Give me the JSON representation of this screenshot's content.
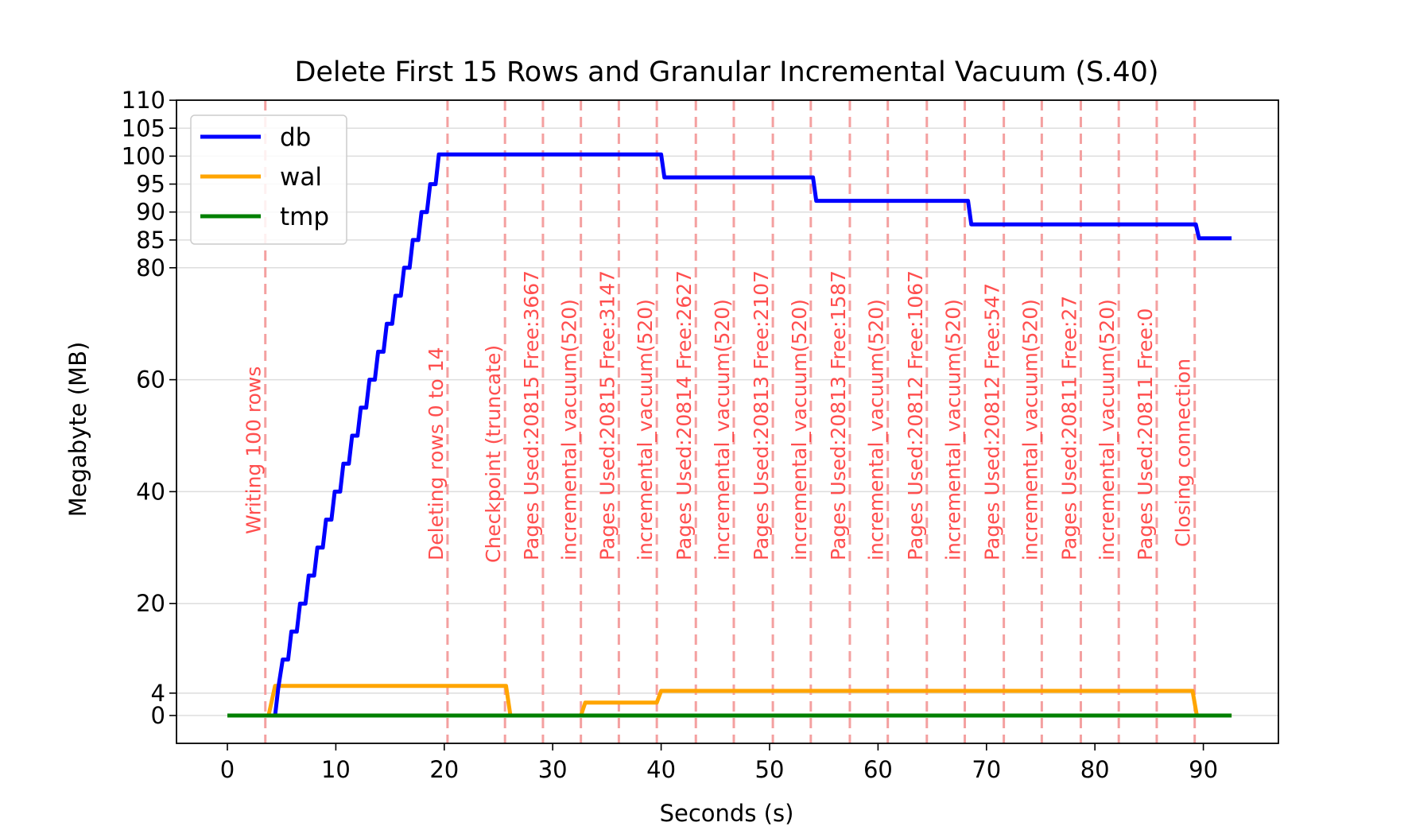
{
  "chart_data": {
    "type": "line",
    "title": "Delete First 15 Rows and Granular Incremental Vacuum (S.40)",
    "xlabel": "Seconds (s)",
    "ylabel": "Megabyte (MB)",
    "xlim": [
      -4.5,
      97.0
    ],
    "ylim": [
      -5,
      110
    ],
    "x_ticks": [
      0,
      10,
      20,
      30,
      40,
      50,
      60,
      70,
      80,
      90
    ],
    "y_ticks": [
      0,
      4,
      20,
      40,
      60,
      80,
      85,
      90,
      95,
      100,
      105,
      110
    ],
    "grid": "horizontal",
    "legend_position": "top-left",
    "series": [
      {
        "name": "db",
        "color": "#0000ff",
        "points": [
          [
            0,
            0
          ],
          [
            4.4,
            0
          ],
          [
            4.7,
            5
          ],
          [
            5.1,
            10
          ],
          [
            5.6,
            10
          ],
          [
            5.9,
            15
          ],
          [
            6.4,
            15
          ],
          [
            6.7,
            20
          ],
          [
            7.2,
            20
          ],
          [
            7.5,
            25
          ],
          [
            8.0,
            25
          ],
          [
            8.3,
            30
          ],
          [
            8.8,
            30
          ],
          [
            9.1,
            35
          ],
          [
            9.6,
            35
          ],
          [
            9.9,
            40
          ],
          [
            10.4,
            40
          ],
          [
            10.7,
            45
          ],
          [
            11.2,
            45
          ],
          [
            11.5,
            50
          ],
          [
            12.0,
            50
          ],
          [
            12.3,
            55
          ],
          [
            12.8,
            55
          ],
          [
            13.1,
            60
          ],
          [
            13.6,
            60
          ],
          [
            13.9,
            65
          ],
          [
            14.4,
            65
          ],
          [
            14.7,
            70
          ],
          [
            15.2,
            70
          ],
          [
            15.5,
            75
          ],
          [
            16.0,
            75
          ],
          [
            16.3,
            80
          ],
          [
            16.8,
            80
          ],
          [
            17.1,
            85
          ],
          [
            17.6,
            85
          ],
          [
            17.9,
            90
          ],
          [
            18.4,
            90
          ],
          [
            18.7,
            95
          ],
          [
            19.2,
            95
          ],
          [
            19.5,
            100.3
          ],
          [
            40.0,
            100.3
          ],
          [
            40.3,
            96.2
          ],
          [
            54.0,
            96.2
          ],
          [
            54.3,
            92.0
          ],
          [
            68.3,
            92.0
          ],
          [
            68.6,
            87.8
          ],
          [
            89.3,
            87.8
          ],
          [
            89.6,
            85.3
          ],
          [
            92.6,
            85.3
          ]
        ]
      },
      {
        "name": "wal",
        "color": "#ffa500",
        "points": [
          [
            0,
            0
          ],
          [
            3.8,
            0
          ],
          [
            4.4,
            5.3
          ],
          [
            25.7,
            5.3
          ],
          [
            26.1,
            0
          ],
          [
            32.6,
            0
          ],
          [
            33.0,
            2.3
          ],
          [
            39.6,
            2.3
          ],
          [
            40.0,
            4.4
          ],
          [
            89.0,
            4.4
          ],
          [
            89.4,
            0
          ],
          [
            92.6,
            0
          ]
        ]
      },
      {
        "name": "tmp",
        "color": "#008000",
        "points": [
          [
            0,
            0
          ],
          [
            92.6,
            0
          ]
        ]
      }
    ],
    "annotations": [
      {
        "x": 3.5,
        "label": "Writing 100 rows"
      },
      {
        "x": 20.3,
        "label": "Deleting rows 0 to 14"
      },
      {
        "x": 25.6,
        "label": "Checkpoint (truncate)"
      },
      {
        "x": 29.1,
        "label": "Pages Used:20815 Free:3667"
      },
      {
        "x": 32.6,
        "label": "incremental_vacuum(520)"
      },
      {
        "x": 36.1,
        "label": "Pages Used:20815 Free:3147"
      },
      {
        "x": 39.6,
        "label": "incremental_vacuum(520)"
      },
      {
        "x": 43.2,
        "label": "Pages Used:20814 Free:2627"
      },
      {
        "x": 46.7,
        "label": "incremental_vacuum(520)"
      },
      {
        "x": 50.3,
        "label": "Pages Used:20813 Free:2107"
      },
      {
        "x": 53.8,
        "label": "incremental_vacuum(520)"
      },
      {
        "x": 57.4,
        "label": "Pages Used:20813 Free:1587"
      },
      {
        "x": 60.9,
        "label": "incremental_vacuum(520)"
      },
      {
        "x": 64.5,
        "label": "Pages Used:20812 Free:1067"
      },
      {
        "x": 68.0,
        "label": "incremental_vacuum(520)"
      },
      {
        "x": 71.6,
        "label": "Pages Used:20812 Free:547"
      },
      {
        "x": 75.1,
        "label": "incremental_vacuum(520)"
      },
      {
        "x": 78.7,
        "label": "Pages Used:20811 Free:27"
      },
      {
        "x": 82.2,
        "label": "incremental_vacuum(520)"
      },
      {
        "x": 85.7,
        "label": "Pages Used:20811 Free:0"
      },
      {
        "x": 89.2,
        "label": "Closing connection"
      }
    ]
  }
}
